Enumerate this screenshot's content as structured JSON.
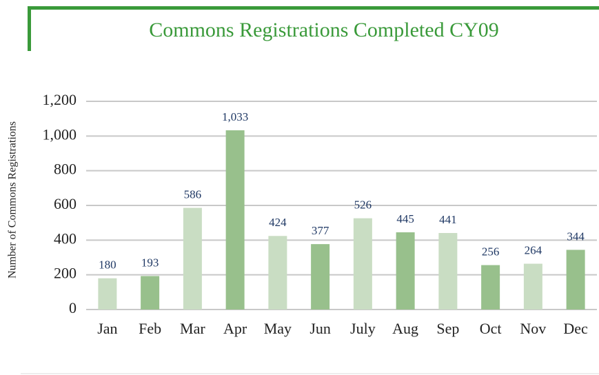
{
  "chart_data": {
    "type": "bar",
    "title": "Commons Registrations Completed CY09",
    "y_label": "Number of Commons Registrations",
    "categories": [
      "Jan",
      "Feb",
      "Mar",
      "Apr",
      "May",
      "Jun",
      "July",
      "Aug",
      "Sep",
      "Oct",
      "Nov",
      "Dec"
    ],
    "values": [
      180,
      193,
      586,
      1033,
      424,
      377,
      526,
      445,
      441,
      256,
      264,
      344
    ],
    "value_labels": [
      "180",
      "193",
      "586",
      "1,033",
      "424",
      "377",
      "526",
      "445",
      "441",
      "256",
      "264",
      "344"
    ],
    "colors": [
      "#c9ddc3",
      "#98c08c",
      "#c9ddc3",
      "#98c08c",
      "#c9ddc3",
      "#98c08c",
      "#c9ddc3",
      "#98c08c",
      "#c9ddc3",
      "#98c08c",
      "#c9ddc3",
      "#98c08c"
    ],
    "ylim": [
      0,
      1200
    ],
    "yticks": [
      0,
      200,
      400,
      600,
      800,
      {
        "value": 1000,
        "label": "1,000"
      },
      {
        "value": 1200,
        "label": "1,200"
      }
    ],
    "grid": true
  }
}
